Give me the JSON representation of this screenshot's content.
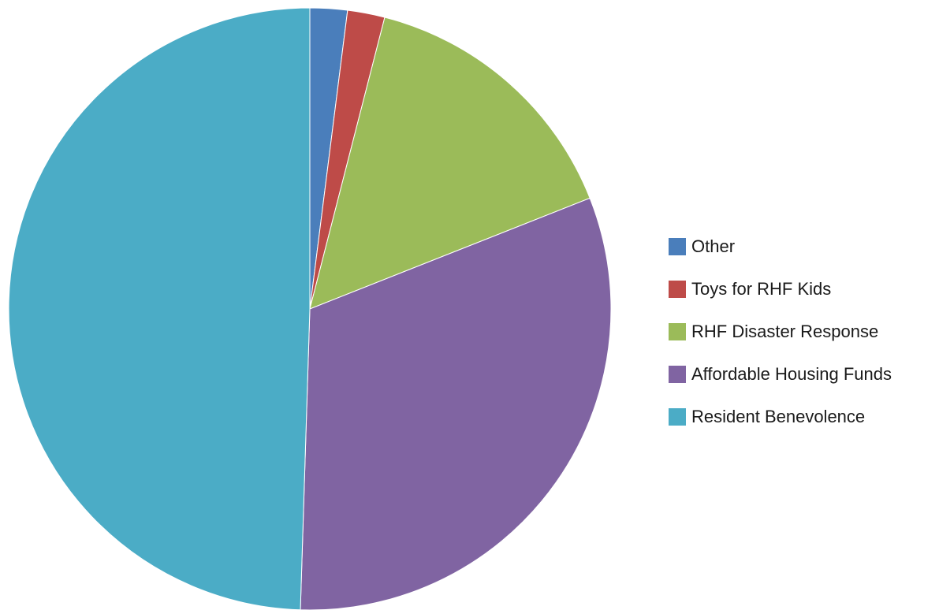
{
  "chart_data": {
    "type": "pie",
    "title": "",
    "slices": [
      {
        "label": "Other",
        "value": 2.0,
        "color": "#4a7ebb"
      },
      {
        "label": "Toys for RHF Kids",
        "value": 2.0,
        "color": "#be4b48"
      },
      {
        "label": "RHF Disaster Response",
        "value": 15.0,
        "color": "#9bbb59"
      },
      {
        "label": "Affordable Housing Funds",
        "value": 31.5,
        "color": "#8064a2"
      },
      {
        "label": "Resident Benevolence",
        "value": 49.5,
        "color": "#4bacc6"
      }
    ],
    "start_angle": "top",
    "direction": "clockwise",
    "legend_position": "right"
  }
}
